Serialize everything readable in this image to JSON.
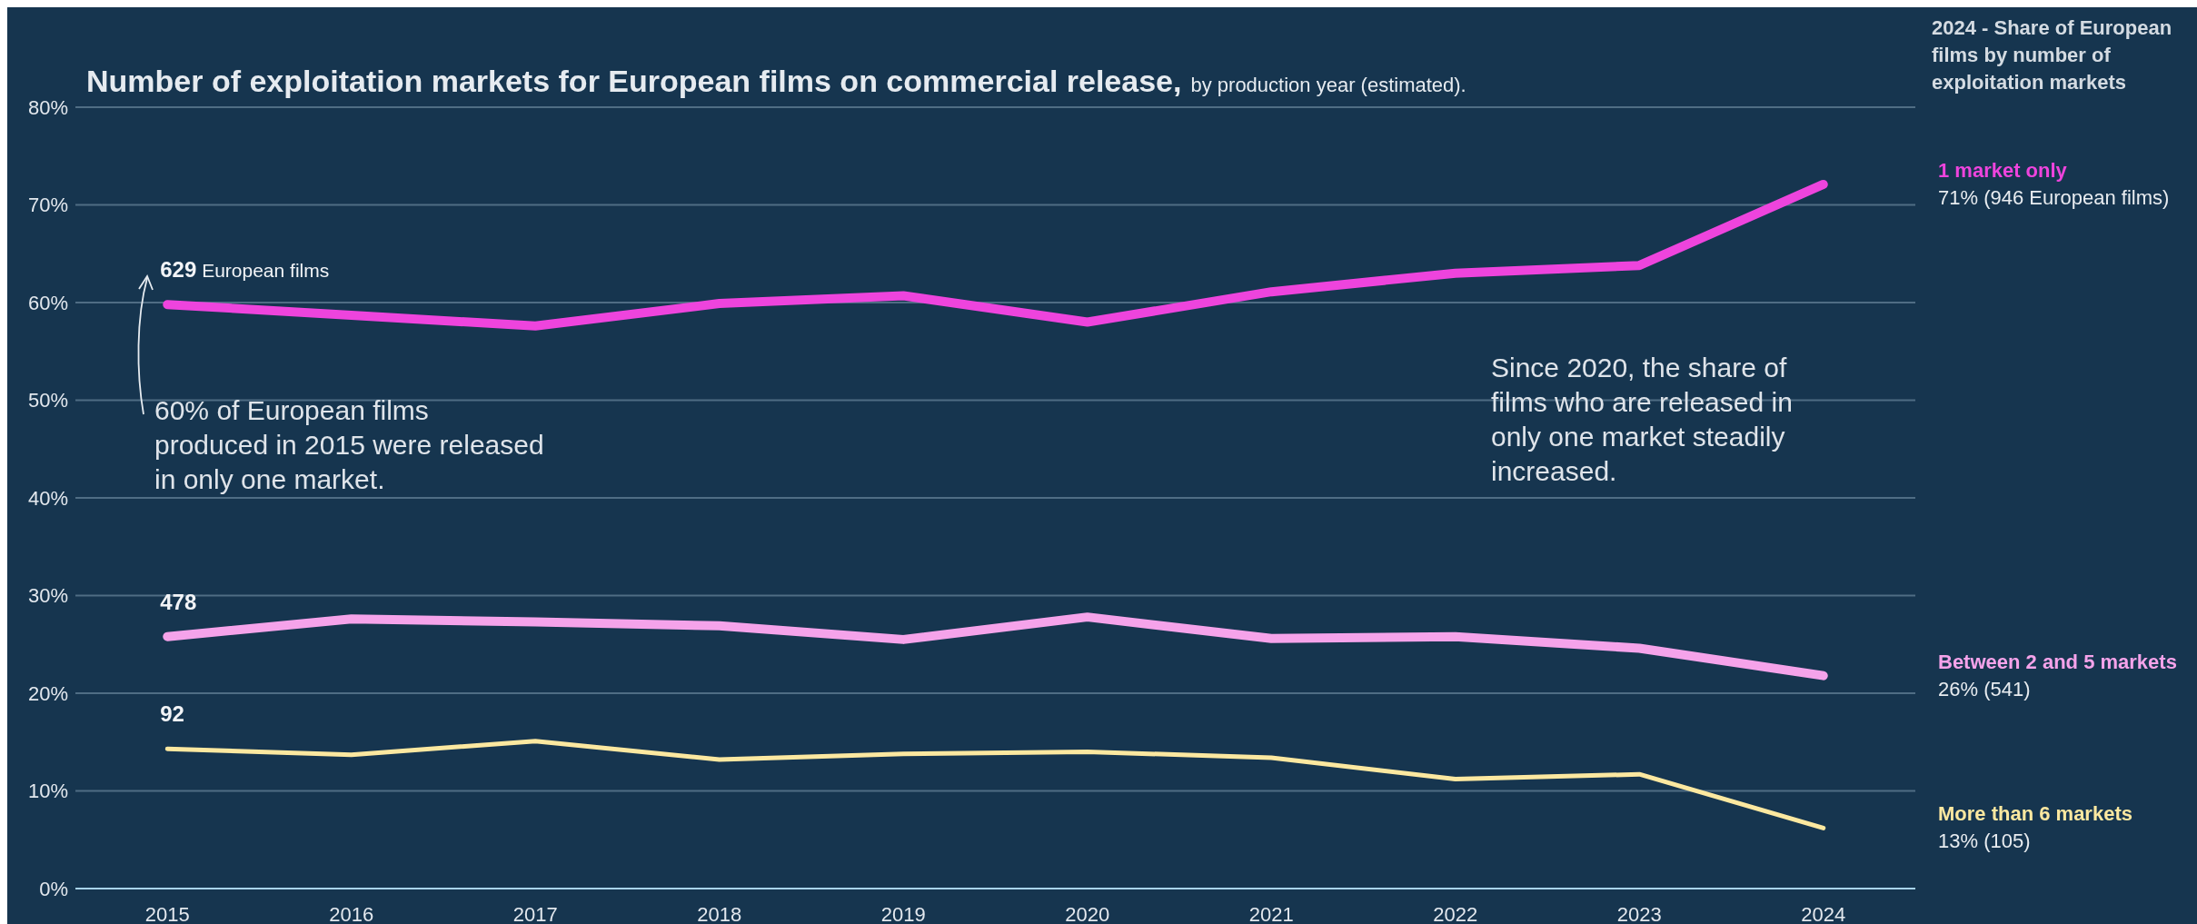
{
  "chart_data": {
    "type": "line",
    "title": "Number of exploitation markets for European films on commercial release,",
    "subtitle": "by production year (estimated).",
    "legend_title": "2024 - Share of European films by number of exploitation markets",
    "legend": "right",
    "grid": "y",
    "marker": "none",
    "line_style": "solid",
    "categories": [
      "2015",
      "2016",
      "2017",
      "2018",
      "2019",
      "2020",
      "2021",
      "2022",
      "2023",
      "2024"
    ],
    "ylim": [
      0,
      80
    ],
    "yticks": [
      {
        "value": 0,
        "label": "0%"
      },
      {
        "value": 10,
        "label": "10%"
      },
      {
        "value": 20,
        "label": "20%"
      },
      {
        "value": 30,
        "label": "30%"
      },
      {
        "value": 40,
        "label": "40%"
      },
      {
        "value": 50,
        "label": "50%"
      },
      {
        "value": 60,
        "label": "60%"
      },
      {
        "value": 70,
        "label": "70%"
      },
      {
        "value": 80,
        "label": "80%"
      }
    ],
    "series": [
      {
        "name": "1 market only",
        "color": "#ee44dd",
        "values": [
          59.8,
          58.7,
          57.6,
          59.9,
          60.7,
          58.0,
          61.1,
          63.0,
          63.8,
          72.1
        ]
      },
      {
        "name": "Between 2 and 5 markets",
        "color": "#f5a3ea",
        "values": [
          25.8,
          27.6,
          27.3,
          26.9,
          25.5,
          27.8,
          25.6,
          25.8,
          24.6,
          21.8
        ]
      },
      {
        "name": "More than 6 markets",
        "color": "#fce8a0",
        "values": [
          14.3,
          13.7,
          15.1,
          13.2,
          13.8,
          14.0,
          13.4,
          11.2,
          11.7,
          6.2
        ]
      }
    ],
    "annotations": [
      "60% of European films produced in 2015 were released in only one market.",
      "Since 2020, the share of films who are released in only one market steadily increased.",
      "71% (946 European films)",
      "26% (541)",
      "13% (105)",
      {
        "text": "629 European films",
        "x": "2015",
        "y": 59.8
      },
      {
        "text": "478",
        "x": "2015",
        "y": 25.8
      },
      {
        "text": "92",
        "x": "2015",
        "y": 14.3
      }
    ]
  }
}
